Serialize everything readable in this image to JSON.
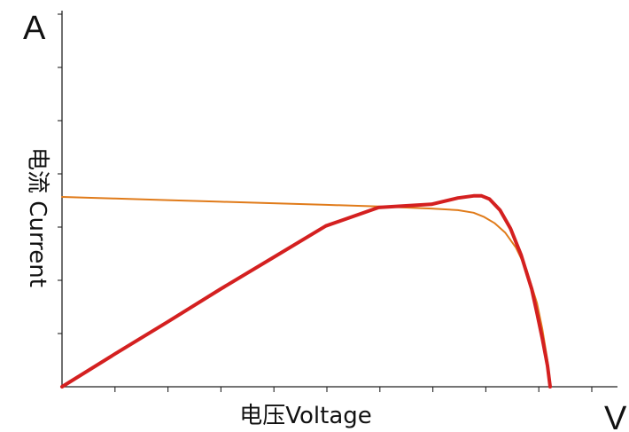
{
  "chart_data": {
    "type": "line",
    "title": "",
    "y_unit_symbol": "A",
    "x_unit_symbol": "V",
    "ylabel": "电流 Current",
    "xlabel": "电压Voltage",
    "xlim": [
      0,
      10
    ],
    "ylim": [
      0,
      7.2
    ],
    "grid": false,
    "legend": "none",
    "series": [
      {
        "color": "#e07b1a",
        "x": [
          0,
          1,
          2,
          3,
          4,
          5,
          6,
          7,
          7.5,
          7.8,
          8.0,
          8.2,
          8.4,
          8.6,
          8.8,
          9.0,
          9.1,
          9.2,
          9.25
        ],
        "y": [
          3.6,
          3.57,
          3.54,
          3.51,
          3.48,
          3.45,
          3.42,
          3.38,
          3.35,
          3.3,
          3.22,
          3.1,
          2.92,
          2.64,
          2.23,
          1.59,
          1.1,
          0.5,
          0
        ]
      },
      {
        "color": "#d42020",
        "x": [
          0,
          1,
          2,
          3,
          4,
          5,
          6,
          7,
          7.5,
          7.8,
          7.95,
          8.1,
          8.3,
          8.5,
          8.7,
          8.9,
          9.0,
          9.1,
          9.2,
          9.25
        ],
        "y": [
          0,
          0.62,
          1.23,
          1.85,
          2.45,
          3.05,
          3.4,
          3.46,
          3.58,
          3.62,
          3.62,
          3.56,
          3.35,
          3.0,
          2.5,
          1.85,
          1.4,
          0.92,
          0.4,
          0
        ]
      }
    ]
  }
}
